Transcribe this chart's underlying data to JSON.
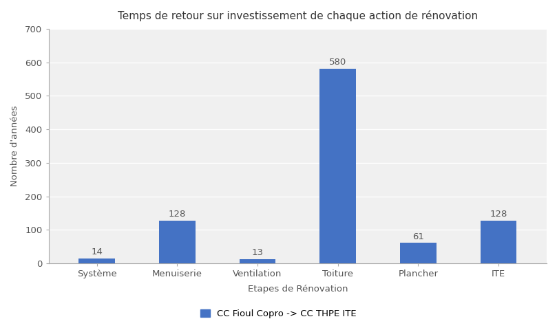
{
  "title": "Temps de retour sur investissement de chaque action de rénovation",
  "xlabel": "Etapes de Rénovation",
  "ylabel": "Nombre d'années",
  "categories": [
    "Système",
    "Menuiserie",
    "Ventilation",
    "Toiture",
    "Plancher",
    "ITE"
  ],
  "values": [
    14,
    128,
    13,
    580,
    61,
    128
  ],
  "bar_color": "#4472C4",
  "ylim": [
    0,
    700
  ],
  "yticks": [
    0,
    100,
    200,
    300,
    400,
    500,
    600,
    700
  ],
  "legend_label": "CC Fioul Copro -> CC THPE ITE",
  "background_color": "#ffffff",
  "plot_bg_color": "#f0f0f0",
  "grid_color": "#ffffff",
  "title_fontsize": 11,
  "label_fontsize": 9.5,
  "tick_fontsize": 9.5,
  "bar_width": 0.45,
  "annotation_fontsize": 9.5
}
